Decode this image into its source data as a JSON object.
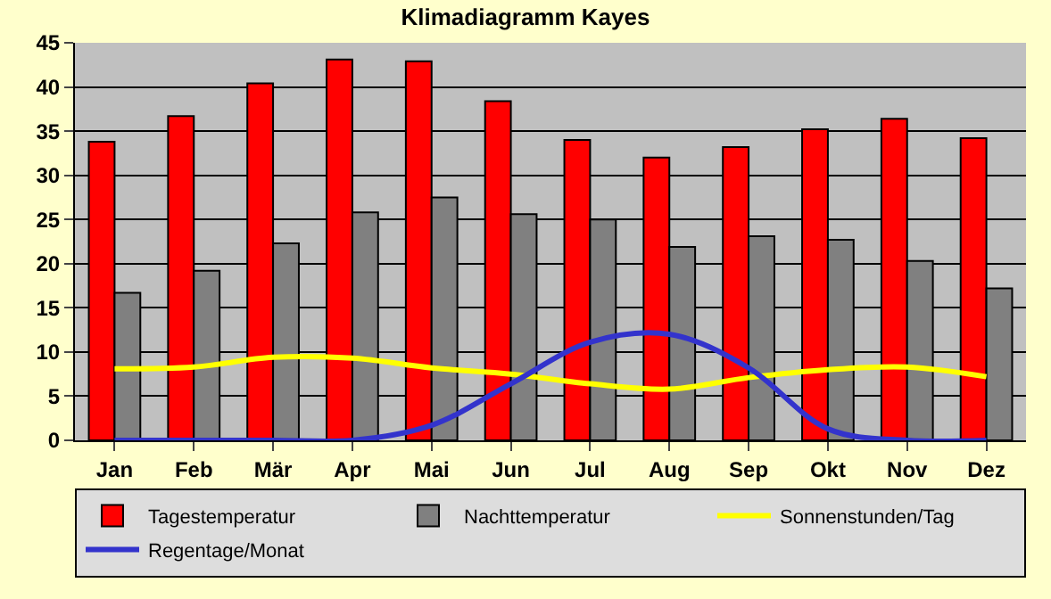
{
  "chart_data": {
    "type": "bar",
    "title": "Klimadiagramm Kayes",
    "categories": [
      "Jan",
      "Feb",
      "Mär",
      "Apr",
      "Mai",
      "Jun",
      "Jul",
      "Aug",
      "Sep",
      "Okt",
      "Nov",
      "Dez"
    ],
    "series": [
      {
        "name": "Tagestemperatur",
        "color": "#ff0000",
        "values": [
          33.8,
          36.7,
          40.4,
          43.1,
          42.9,
          38.4,
          34.0,
          32.0,
          33.2,
          35.2,
          36.4,
          34.2
        ]
      },
      {
        "name": "Nachttemperatur",
        "color": "#808080",
        "values": [
          16.7,
          19.2,
          22.3,
          25.8,
          27.5,
          25.6,
          25.0,
          21.9,
          23.1,
          22.7,
          20.3,
          17.2
        ]
      },
      {
        "name": "Sonnenstunden/Tag",
        "type": "line",
        "color": "#ffff00",
        "values": [
          8.1,
          8.3,
          9.4,
          9.3,
          8.2,
          7.5,
          6.4,
          5.8,
          7.1,
          8.0,
          8.3,
          7.2
        ]
      },
      {
        "name": "Regentage/Monat",
        "type": "line",
        "color": "#3333cc",
        "values": [
          0,
          0,
          0,
          0,
          1.7,
          6.4,
          11.1,
          12.0,
          8.2,
          1.3,
          0,
          0
        ]
      }
    ],
    "ylim": [
      0,
      45
    ],
    "yticks": [
      0,
      5,
      10,
      15,
      20,
      25,
      30,
      35,
      40,
      45
    ],
    "grid": "y",
    "legend": "bottom",
    "marker": "none",
    "line_style": "solid"
  }
}
